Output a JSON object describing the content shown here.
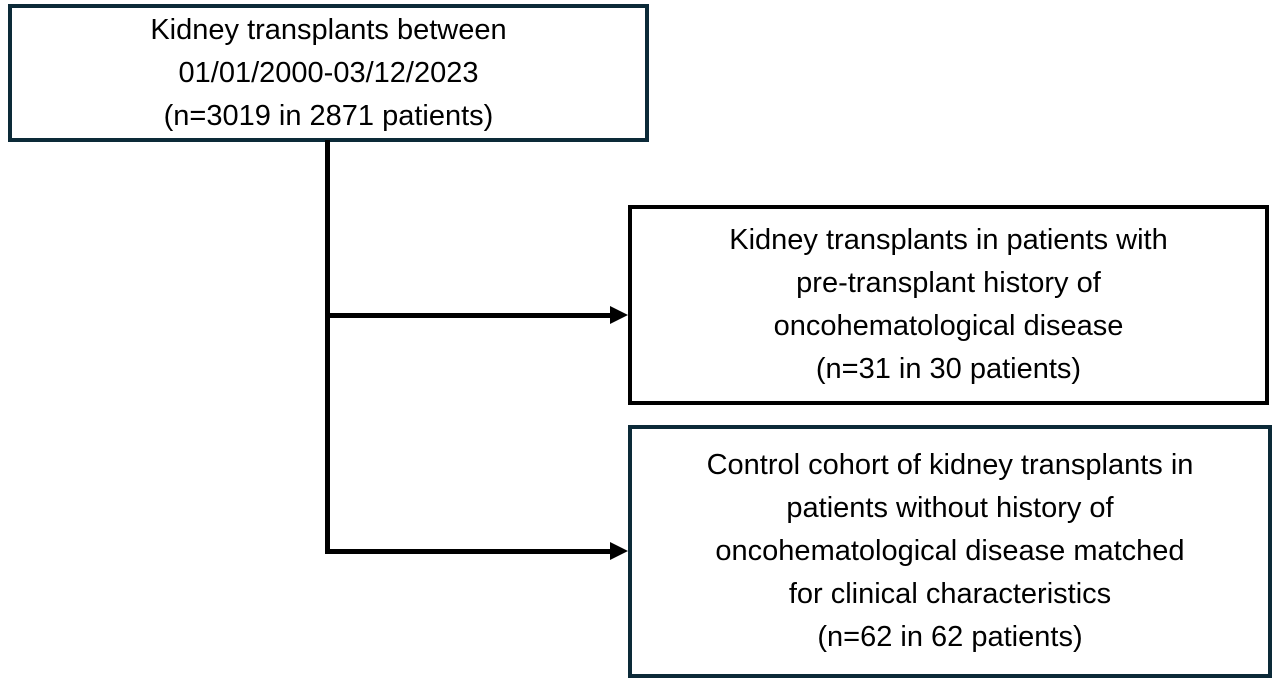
{
  "diagram": {
    "type": "flowchart",
    "background_color": "#ffffff",
    "connector_color": "#000000",
    "accent_border_color": "#0c2a38",
    "default_border_color": "#000000",
    "boxes": [
      {
        "id": "source-population",
        "text": "Kidney transplants between\n01/01/2000-03/12/2023\n(n=3019 in 2871 patients)",
        "border_color": "#0c2a38",
        "n_transplants": 3019,
        "n_patients": 2871,
        "date_range": "01/01/2000-03/12/2023"
      },
      {
        "id": "oncohematological-cohort",
        "text": "Kidney transplants in patients with\npre-transplant history of\noncohematological disease\n(n=31 in 30 patients)",
        "border_color": "#000000",
        "n_transplants": 31,
        "n_patients": 30
      },
      {
        "id": "control-cohort",
        "text": "Control cohort of kidney transplants in\npatients without history of\noncohematological disease matched\nfor clinical characteristics\n(n=62 in 62 patients)",
        "border_color": "#0c2a38",
        "n_transplants": 62,
        "n_patients": 62
      }
    ],
    "connectors": [
      {
        "from": "source-population",
        "to": "oncohematological-cohort",
        "style": "elbow-arrow"
      },
      {
        "from": "source-population",
        "to": "control-cohort",
        "style": "elbow-arrow"
      }
    ]
  }
}
